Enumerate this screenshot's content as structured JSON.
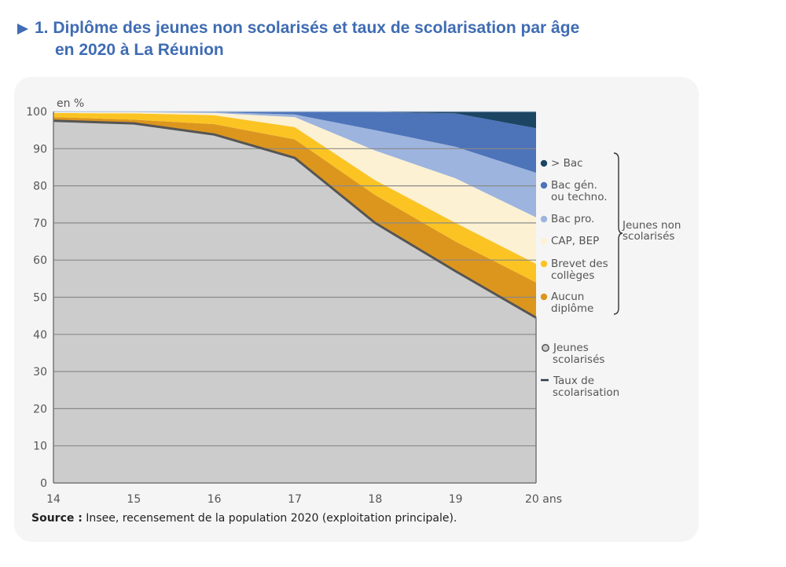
{
  "title": {
    "number": "1.",
    "line1": "1. Diplôme des jeunes non scolarisés et taux de scolarisation par âge",
    "line2": "en 2020 à La Réunion"
  },
  "source": {
    "label": "Source :",
    "text": " Insee, recensement de la population 2020 (exploitation principale)."
  },
  "chart_data": {
    "type": "area",
    "stacked": true,
    "title": "Diplôme des jeunes non scolarisés et taux de scolarisation par âge en 2020 à La Réunion",
    "ylabel": "en %",
    "xlabel": "ans",
    "x": [
      14,
      15,
      16,
      17,
      18,
      19,
      20
    ],
    "x_tick_labels": [
      "14",
      "15",
      "16",
      "17",
      "18",
      "19",
      "20 ans"
    ],
    "ylim": [
      0,
      100
    ],
    "y_ticks": [
      0,
      10,
      20,
      30,
      40,
      50,
      60,
      70,
      80,
      90,
      100
    ],
    "grid": true,
    "legend_position": "right",
    "series": [
      {
        "name": "Jeunes scolarisés",
        "color": "#cccccc",
        "values": [
          97.5,
          96.8,
          93.8,
          87.5,
          70.0,
          57.0,
          44.5
        ]
      },
      {
        "name": "Aucun diplôme",
        "color": "#dc961e",
        "values": [
          1.0,
          1.0,
          2.8,
          5.0,
          7.5,
          8.0,
          9.5
        ]
      },
      {
        "name": "Brevet des collèges",
        "color": "#fbc423",
        "values": [
          1.1,
          1.7,
          2.4,
          3.3,
          4.0,
          5.0,
          5.0
        ]
      },
      {
        "name": "CAP, BEP",
        "color": "#fdf1d3",
        "values": [
          0.2,
          0.3,
          0.6,
          2.7,
          8.0,
          12.0,
          12.5
        ]
      },
      {
        "name": "Bac pro.",
        "color": "#9db4de",
        "values": [
          0.1,
          0.1,
          0.2,
          0.7,
          5.5,
          8.5,
          12.0
        ]
      },
      {
        "name": "Bac gén. ou techno.",
        "color": "#4d73b8",
        "values": [
          0.1,
          0.1,
          0.2,
          0.8,
          4.9,
          9.0,
          12.0
        ]
      },
      {
        "name": "> Bac",
        "color": "#1b4563",
        "values": [
          0.0,
          0.0,
          0.0,
          0.0,
          0.1,
          0.5,
          4.5
        ]
      }
    ],
    "line_series": {
      "name": "Taux de scolarisation",
      "color": "#555555",
      "values": [
        97.5,
        96.8,
        93.8,
        87.5,
        70.0,
        57.0,
        44.5
      ]
    },
    "legend": {
      "items": [
        {
          "label": "> Bac",
          "color": "#1b4563",
          "marker": "dot"
        },
        {
          "label": "Bac gén.",
          "label2": "ou techno.",
          "color": "#4d73b8",
          "marker": "dot"
        },
        {
          "label": "Bac pro.",
          "color": "#9db4de",
          "marker": "dot"
        },
        {
          "label": "CAP, BEP",
          "color": "#fdf1d3",
          "marker": "dot"
        },
        {
          "label": "Brevet des",
          "label2": "collèges",
          "color": "#fbc423",
          "marker": "dot"
        },
        {
          "label": "Aucun",
          "label2": "diplôme",
          "color": "#dc961e",
          "marker": "dot"
        },
        {
          "label": "Jeunes",
          "label2": "scolarisés",
          "color": "#cccccc",
          "marker": "dot-outline"
        },
        {
          "label": "Taux de",
          "label2": "scolarisation",
          "color": "#2b3a4a",
          "marker": "dash"
        }
      ],
      "group_label": "Jeunes non",
      "group_label2": "scolarisés"
    }
  }
}
